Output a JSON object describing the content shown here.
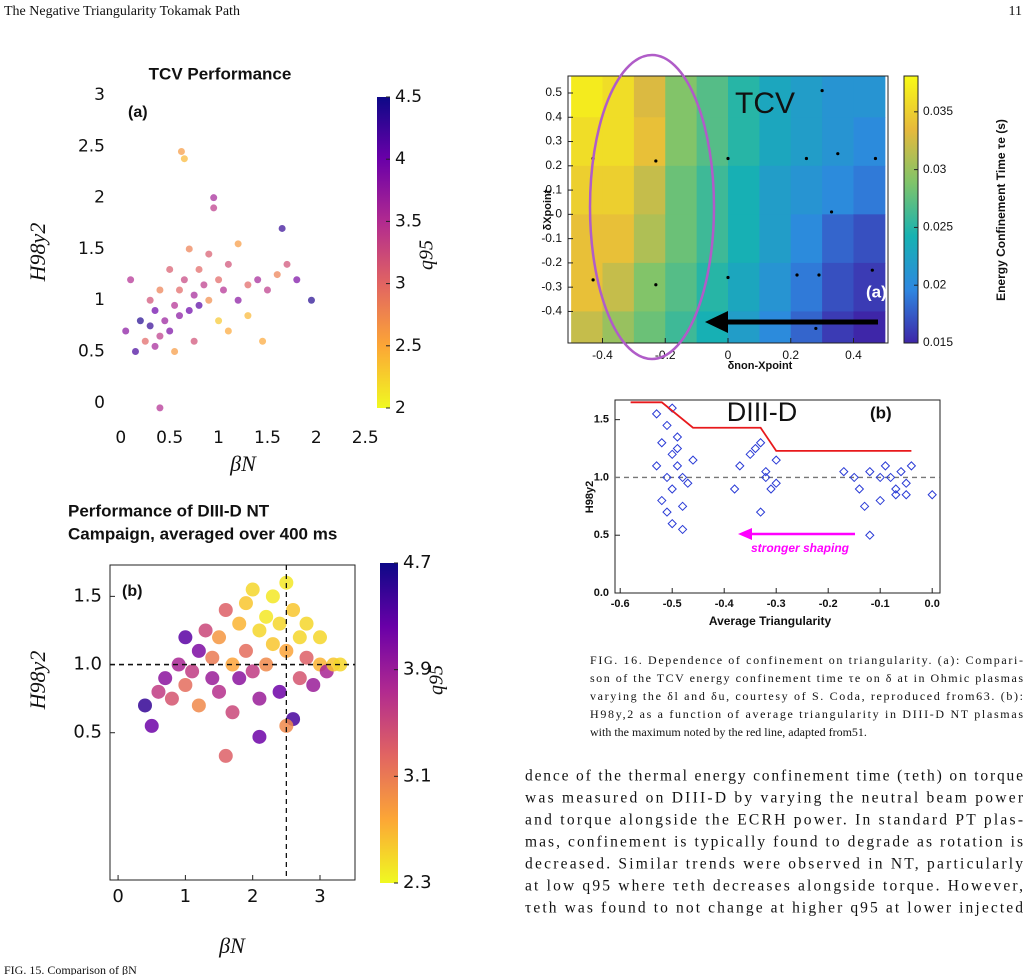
{
  "header": {
    "title": "The Negative Triangularity Tokamak Path",
    "page": "11"
  },
  "chart_data": [
    {
      "type": "scatter",
      "title": "TCV Performance",
      "panel": "(a)",
      "x_label": "βN",
      "y_label": "H98y2",
      "xlim": [
        -0.08,
        2.6
      ],
      "ylim": [
        -0.09,
        3.05
      ],
      "xticks": [
        0,
        0.5,
        1,
        1.5,
        2,
        2.5
      ],
      "yticks": [
        0,
        0.5,
        1,
        1.5,
        2,
        2.5,
        3
      ],
      "colormap": "plasma_r",
      "colorbar": {
        "label": "q95",
        "lim": [
          2,
          4.5
        ],
        "ticks": [
          2,
          2.5,
          3,
          3.5,
          4,
          4.5
        ]
      },
      "x": [
        0.05,
        0.1,
        0.15,
        0.2,
        0.25,
        0.3,
        0.3,
        0.35,
        0.35,
        0.4,
        0.4,
        0.45,
        0.5,
        0.5,
        0.55,
        0.55,
        0.6,
        0.6,
        0.62,
        0.65,
        0.65,
        0.7,
        0.7,
        0.75,
        0.75,
        0.8,
        0.8,
        0.85,
        0.9,
        0.9,
        0.95,
        0.95,
        1.0,
        1.0,
        1.05,
        1.1,
        1.1,
        1.2,
        1.2,
        1.3,
        1.3,
        1.4,
        1.45,
        1.5,
        1.6,
        1.65,
        1.7,
        1.8,
        1.95,
        0.4
      ],
      "y": [
        0.7,
        1.2,
        0.5,
        0.8,
        0.6,
        0.75,
        1.0,
        0.55,
        0.9,
        0.65,
        1.1,
        0.8,
        0.7,
        1.3,
        0.95,
        0.5,
        1.1,
        0.85,
        2.45,
        2.38,
        1.2,
        0.9,
        1.5,
        1.05,
        0.6,
        1.3,
        0.95,
        1.15,
        1.0,
        1.45,
        2.0,
        1.9,
        1.2,
        0.8,
        1.1,
        1.35,
        0.7,
        1.0,
        1.55,
        1.15,
        0.85,
        1.2,
        0.6,
        1.1,
        1.25,
        1.7,
        1.35,
        1.2,
        1.0,
        -0.05
      ],
      "c": [
        3.8,
        3.5,
        4.2,
        4.4,
        3.0,
        4.3,
        3.2,
        3.6,
        4.0,
        3.4,
        2.8,
        3.7,
        3.9,
        3.1,
        3.5,
        2.6,
        3.0,
        3.8,
        2.6,
        2.4,
        3.3,
        4.0,
        2.8,
        3.6,
        3.2,
        3.0,
        4.1,
        3.4,
        2.7,
        3.1,
        3.6,
        3.4,
        3.0,
        2.3,
        3.5,
        3.2,
        2.5,
        3.8,
        2.6,
        3.0,
        2.4,
        3.6,
        2.5,
        3.4,
        2.8,
        4.3,
        3.2,
        3.9,
        4.4,
        3.5
      ]
    },
    {
      "type": "scatter",
      "title": [
        "Performance of DIII-D NT",
        "Campaign, averaged over 400 ms"
      ],
      "panel": "(b)",
      "x_label": "βN",
      "y_label": "H98y2",
      "xlim": [
        -0.12,
        3.52
      ],
      "ylim": [
        -0.58,
        1.73
      ],
      "xticks": [
        0,
        1,
        2,
        3
      ],
      "yticks": [
        0.5,
        {
          "value": 1,
          "label": "1.0"
        },
        1.5
      ],
      "hlines": [
        1
      ],
      "vlines": [
        2.5
      ],
      "colormap": "plasma_r",
      "colorbar": {
        "label": "q95",
        "lim": [
          2.3,
          4.7
        ],
        "ticks": [
          2.3,
          3.1,
          3.9,
          4.7
        ]
      },
      "x": [
        0.4,
        0.5,
        0.6,
        0.7,
        0.8,
        0.9,
        1.0,
        1.0,
        1.1,
        1.2,
        1.2,
        1.3,
        1.4,
        1.4,
        1.5,
        1.5,
        1.6,
        1.7,
        1.7,
        1.8,
        1.8,
        1.9,
        1.9,
        2.0,
        2.0,
        2.1,
        2.1,
        2.2,
        2.2,
        2.3,
        2.3,
        2.4,
        2.4,
        2.5,
        2.5,
        2.6,
        2.6,
        2.7,
        2.7,
        2.8,
        2.8,
        2.9,
        3.0,
        3.0,
        3.1,
        3.2,
        3.3,
        1.6,
        2.1,
        2.5
      ],
      "y": [
        0.7,
        0.55,
        0.8,
        0.9,
        0.75,
        1.0,
        0.85,
        1.2,
        0.95,
        0.7,
        1.1,
        1.25,
        0.9,
        1.05,
        1.2,
        0.8,
        1.4,
        1.0,
        0.65,
        1.3,
        0.9,
        1.45,
        1.1,
        1.55,
        0.95,
        1.25,
        0.75,
        1.35,
        1.0,
        1.5,
        1.15,
        1.3,
        0.8,
        1.6,
        1.1,
        1.4,
        0.6,
        1.2,
        0.9,
        1.05,
        1.3,
        0.85,
        1.0,
        1.2,
        0.95,
        1.0,
        1.0,
        0.33,
        0.47,
        0.55
      ],
      "c": [
        4.5,
        4.2,
        3.6,
        4.0,
        3.4,
        3.8,
        3.2,
        4.3,
        3.6,
        3.0,
        4.1,
        3.5,
        3.9,
        3.1,
        2.9,
        3.7,
        3.3,
        2.8,
        3.5,
        2.7,
        4.0,
        2.6,
        3.2,
        2.5,
        3.6,
        2.5,
        3.9,
        2.4,
        3.0,
        2.4,
        2.6,
        2.5,
        4.2,
        2.4,
        2.8,
        2.6,
        4.4,
        2.5,
        3.4,
        3.3,
        2.5,
        3.9,
        2.7,
        2.5,
        3.8,
        2.6,
        2.5,
        3.3,
        4.2,
        3.0
      ]
    },
    {
      "type": "heatmap",
      "title": "TCV",
      "panel": "(a)",
      "x_label": "δnon-Xpoint",
      "y_label": "δXpoint",
      "xlim": [
        -0.51,
        0.51
      ],
      "ylim": [
        -0.53,
        0.57
      ],
      "xticks": [
        -0.4,
        -0.2,
        0,
        0.2,
        0.4
      ],
      "yticks": [
        -0.4,
        -0.3,
        -0.2,
        -0.1,
        0,
        0.1,
        0.2,
        0.3,
        0.4,
        0.5
      ],
      "colormap": "parula",
      "colorbar": {
        "label": "Energy Confinement Time τe (s)",
        "lim": [
          0.015,
          0.0381
        ],
        "ticks": [
          0.015,
          0.02,
          0.025,
          0.03,
          0.035
        ]
      },
      "x": [
        -0.45,
        -0.35,
        -0.25,
        -0.15,
        -0.05,
        0.05,
        0.15,
        0.25,
        0.35,
        0.45
      ],
      "y": [
        0.5,
        0.3,
        0.1,
        -0.1,
        -0.3,
        -0.5
      ],
      "z": [
        [
          0.037,
          0.036,
          0.033,
          0.029,
          0.027,
          0.025,
          0.023,
          0.022,
          0.021,
          0.021
        ],
        [
          0.036,
          0.036,
          0.034,
          0.029,
          0.027,
          0.025,
          0.023,
          0.022,
          0.021,
          0.02
        ],
        [
          0.035,
          0.035,
          0.032,
          0.028,
          0.026,
          0.024,
          0.022,
          0.021,
          0.02,
          0.019
        ],
        [
          0.034,
          0.034,
          0.031,
          0.028,
          0.026,
          0.024,
          0.022,
          0.02,
          0.018,
          0.017
        ],
        [
          0.034,
          0.032,
          0.029,
          0.027,
          0.025,
          0.023,
          0.021,
          0.019,
          0.017,
          0.016
        ],
        [
          0.032,
          0.03,
          0.028,
          0.026,
          0.024,
          0.022,
          0.02,
          0.018,
          0.016,
          0.015
        ]
      ],
      "points": {
        "x": [
          -0.43,
          -0.23,
          0,
          0.25,
          0.35,
          0.47,
          0.3,
          0.33,
          -0.43,
          -0.23,
          0,
          0.22,
          0.29,
          0.46,
          0.28
        ],
        "y": [
          0.23,
          0.22,
          0.23,
          0.23,
          0.25,
          0.23,
          0.51,
          0.01,
          -0.27,
          -0.29,
          -0.26,
          -0.25,
          -0.25,
          -0.23,
          -0.47
        ]
      }
    },
    {
      "type": "scatter",
      "title": "DIII-D",
      "panel": "(b)",
      "x_label": "Average Triangularity",
      "y_label": "H98y2",
      "xlim": [
        -0.61,
        0.015
      ],
      "ylim": [
        0,
        1.67
      ],
      "xticks": [
        -0.6,
        -0.5,
        -0.4,
        -0.3,
        -0.2,
        -0.1,
        {
          "value": 0,
          "label": "0.0"
        }
      ],
      "yticks": [
        {
          "value": 0,
          "label": "0.0"
        },
        0.5,
        {
          "value": 1,
          "label": "1.0"
        },
        1.5
      ],
      "hlines": [
        1
      ],
      "marker": "diamond",
      "color": "#2a3bd6",
      "x": [
        -0.53,
        -0.52,
        -0.52,
        -0.51,
        -0.51,
        -0.5,
        -0.5,
        -0.5,
        -0.49,
        -0.49,
        -0.48,
        -0.48,
        -0.47,
        -0.53,
        -0.51,
        -0.5,
        -0.49,
        -0.48,
        -0.46,
        -0.38,
        -0.37,
        -0.35,
        -0.34,
        -0.33,
        -0.32,
        -0.31,
        -0.3,
        -0.33,
        -0.3,
        -0.32,
        -0.15,
        -0.14,
        -0.12,
        -0.1,
        -0.09,
        -0.08,
        -0.07,
        -0.06,
        -0.05,
        -0.04,
        -0.13,
        -0.1,
        -0.07,
        -0.05,
        0.0,
        -0.17,
        -0.12
      ],
      "y": [
        1.55,
        1.3,
        0.8,
        1.45,
        1.0,
        1.2,
        0.9,
        0.6,
        1.35,
        1.1,
        1.0,
        0.75,
        0.95,
        1.1,
        0.7,
        1.6,
        1.25,
        0.55,
        1.15,
        0.9,
        1.1,
        1.2,
        1.25,
        1.3,
        1.0,
        0.9,
        1.15,
        0.7,
        0.95,
        1.05,
        1.0,
        0.9,
        1.05,
        0.8,
        1.1,
        1.0,
        0.85,
        1.05,
        0.95,
        1.1,
        0.75,
        1.0,
        0.9,
        0.85,
        0.85,
        1.05,
        0.5
      ],
      "max_line": {
        "color": "#e8191c",
        "x": [
          -0.58,
          -0.52,
          -0.46,
          -0.33,
          -0.3,
          -0.04
        ],
        "y": [
          1.65,
          1.65,
          1.43,
          1.43,
          1.23,
          1.23
        ]
      },
      "annotation": "stronger shaping",
      "annotation_color": "#ff00ff"
    }
  ],
  "figure_caption": [
    "FIG. 16. Dependence of confinement on triangularity. (a): Compari-",
    "son of the TCV energy confinement time τe on δ at in Ohmic plasmas",
    "varying the δl and δu, courtesy of S. Coda, reproduced from63. (b):",
    "H98y,2 as a function of average triangularity in DIII-D NT plasmas",
    "with the maximum noted by the red line, adapted from51."
  ],
  "body_text": [
    "dence of the thermal energy confinement time (τeth) on torque",
    "was measured on DIII-D by varying the neutral beam power",
    "and torque alongside the ECRH power. In standard PT plas-",
    "mas, confinement is typically found to degrade as rotation is",
    "decreased. Similar trends were observed in NT, particularly",
    "at low q95 where τeth decreases alongside torque. However,",
    "τeth was found to not change at higher q95 at lower injected"
  ],
  "fig15_caption": "FIG. 15. Comparison of βN"
}
